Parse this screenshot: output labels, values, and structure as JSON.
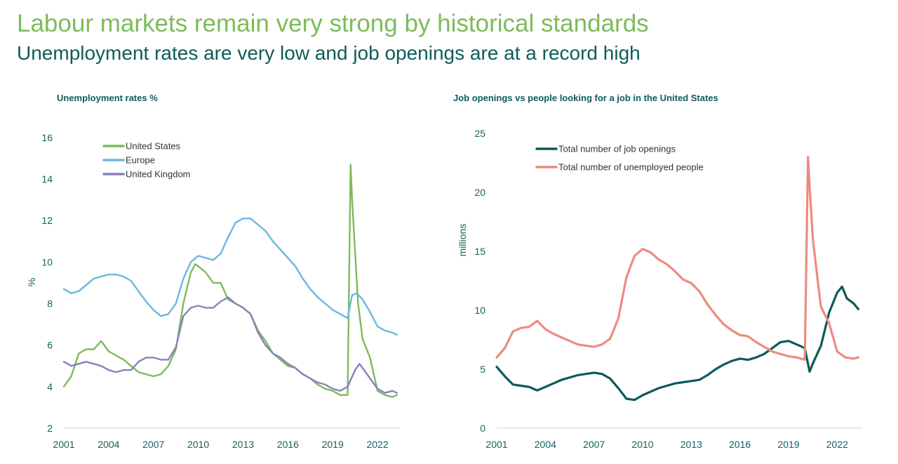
{
  "header": {
    "title": "Labour markets remain very strong by historical standards",
    "subtitle": "Unemployment rates are very low and job openings are at a record high"
  },
  "colors": {
    "title": "#7dbb5a",
    "subtitle": "#0f5b5b",
    "united_states": "#7dbb5a",
    "europe": "#6cb7df",
    "united_kingdom": "#8a80be",
    "job_openings": "#0b5a5a",
    "unemployed_people": "#ec8b80"
  },
  "chart_data": [
    {
      "type": "line",
      "title": "Unemployment rates %",
      "xlabel": "",
      "ylabel": "%",
      "xlim": [
        2001,
        2023.5
      ],
      "ylim": [
        2,
        16.4
      ],
      "xticks": [
        2001,
        2004,
        2007,
        2010,
        2013,
        2016,
        2019,
        2022
      ],
      "yticks": [
        2,
        4,
        6,
        8,
        10,
        12,
        14,
        16
      ],
      "grid": false,
      "legend": "top-left",
      "series": [
        {
          "name": "United States",
          "color": "#7dbb5a",
          "x": [
            2001.0,
            2001.5,
            2002.0,
            2002.5,
            2003.0,
            2003.5,
            2004.0,
            2004.5,
            2005.0,
            2005.5,
            2006.0,
            2006.5,
            2007.0,
            2007.5,
            2008.0,
            2008.5,
            2009.0,
            2009.5,
            2009.8,
            2010.0,
            2010.5,
            2011.0,
            2011.5,
            2012.0,
            2012.5,
            2013.0,
            2013.5,
            2014.0,
            2014.5,
            2015.0,
            2015.5,
            2016.0,
            2016.5,
            2017.0,
            2017.5,
            2018.0,
            2018.5,
            2019.0,
            2019.5,
            2020.0,
            2020.2,
            2020.3,
            2020.5,
            2020.7,
            2021.0,
            2021.5,
            2022.0,
            2022.5,
            2023.0,
            2023.3
          ],
          "values": [
            4.0,
            4.5,
            5.6,
            5.8,
            5.8,
            6.2,
            5.7,
            5.5,
            5.3,
            5.0,
            4.7,
            4.6,
            4.5,
            4.6,
            5.0,
            5.8,
            8.0,
            9.5,
            9.9,
            9.8,
            9.5,
            9.0,
            9.0,
            8.2,
            8.0,
            7.8,
            7.5,
            6.7,
            6.2,
            5.6,
            5.3,
            5.0,
            4.9,
            4.6,
            4.4,
            4.1,
            3.9,
            3.8,
            3.6,
            3.6,
            14.7,
            13.0,
            10.5,
            8.0,
            6.3,
            5.4,
            3.8,
            3.6,
            3.5,
            3.6
          ]
        },
        {
          "name": "Europe",
          "color": "#6cb7df",
          "x": [
            2001.0,
            2001.5,
            2002.0,
            2002.5,
            2003.0,
            2003.5,
            2004.0,
            2004.5,
            2005.0,
            2005.5,
            2006.0,
            2006.5,
            2007.0,
            2007.5,
            2008.0,
            2008.5,
            2009.0,
            2009.5,
            2010.0,
            2010.5,
            2011.0,
            2011.5,
            2012.0,
            2012.5,
            2013.0,
            2013.5,
            2014.0,
            2014.5,
            2015.0,
            2015.5,
            2016.0,
            2016.5,
            2017.0,
            2017.5,
            2018.0,
            2018.5,
            2019.0,
            2019.5,
            2020.0,
            2020.3,
            2020.6,
            2021.0,
            2021.5,
            2022.0,
            2022.5,
            2023.0,
            2023.3
          ],
          "values": [
            8.7,
            8.5,
            8.6,
            8.9,
            9.2,
            9.3,
            9.4,
            9.4,
            9.3,
            9.1,
            8.6,
            8.1,
            7.7,
            7.4,
            7.5,
            8.0,
            9.2,
            10.0,
            10.3,
            10.2,
            10.1,
            10.4,
            11.2,
            11.9,
            12.1,
            12.1,
            11.8,
            11.5,
            11.0,
            10.6,
            10.2,
            9.8,
            9.2,
            8.7,
            8.3,
            8.0,
            7.7,
            7.5,
            7.3,
            8.4,
            8.5,
            8.2,
            7.6,
            6.9,
            6.7,
            6.6,
            6.5
          ]
        },
        {
          "name": "United Kingdom",
          "color": "#8a80be",
          "x": [
            2001.0,
            2001.5,
            2002.0,
            2002.5,
            2003.0,
            2003.5,
            2004.0,
            2004.5,
            2005.0,
            2005.5,
            2006.0,
            2006.5,
            2007.0,
            2007.5,
            2008.0,
            2008.5,
            2009.0,
            2009.5,
            2010.0,
            2010.5,
            2011.0,
            2011.5,
            2012.0,
            2012.5,
            2013.0,
            2013.5,
            2014.0,
            2014.5,
            2015.0,
            2015.5,
            2016.0,
            2016.5,
            2017.0,
            2017.5,
            2018.0,
            2018.5,
            2019.0,
            2019.5,
            2020.0,
            2020.5,
            2020.8,
            2021.0,
            2021.5,
            2022.0,
            2022.5,
            2023.0,
            2023.3
          ],
          "values": [
            5.2,
            5.0,
            5.1,
            5.2,
            5.1,
            5.0,
            4.8,
            4.7,
            4.8,
            4.8,
            5.2,
            5.4,
            5.4,
            5.3,
            5.3,
            5.9,
            7.4,
            7.8,
            7.9,
            7.8,
            7.8,
            8.1,
            8.3,
            8.0,
            7.8,
            7.5,
            6.6,
            6.0,
            5.6,
            5.4,
            5.1,
            4.9,
            4.6,
            4.4,
            4.2,
            4.1,
            3.9,
            3.8,
            4.0,
            4.8,
            5.1,
            4.9,
            4.4,
            3.9,
            3.7,
            3.8,
            3.7
          ]
        }
      ]
    },
    {
      "type": "line",
      "title": "Job openings vs people looking for a job in the United States",
      "xlabel": "",
      "ylabel": "millions",
      "xlim": [
        2001,
        2023.5
      ],
      "ylim": [
        0,
        25
      ],
      "xticks": [
        2001,
        2004,
        2007,
        2010,
        2013,
        2016,
        2019,
        2022
      ],
      "yticks": [
        0,
        5,
        10,
        15,
        20,
        25
      ],
      "grid": false,
      "legend": "top-left",
      "series": [
        {
          "name": "Total number of job openings",
          "color": "#0b5a5a",
          "x": [
            2001.0,
            2001.5,
            2002.0,
            2002.5,
            2003.0,
            2003.5,
            2004.0,
            2004.5,
            2005.0,
            2005.5,
            2006.0,
            2006.5,
            2007.0,
            2007.5,
            2008.0,
            2008.5,
            2009.0,
            2009.5,
            2010.0,
            2010.5,
            2011.0,
            2011.5,
            2012.0,
            2012.5,
            2013.0,
            2013.5,
            2014.0,
            2014.5,
            2015.0,
            2015.5,
            2016.0,
            2016.5,
            2017.0,
            2017.5,
            2018.0,
            2018.5,
            2019.0,
            2019.5,
            2020.0,
            2020.3,
            2020.5,
            2021.0,
            2021.5,
            2022.0,
            2022.3,
            2022.6,
            2023.0,
            2023.3
          ],
          "values": [
            5.2,
            4.4,
            3.7,
            3.6,
            3.5,
            3.2,
            3.5,
            3.8,
            4.1,
            4.3,
            4.5,
            4.6,
            4.7,
            4.6,
            4.2,
            3.4,
            2.5,
            2.4,
            2.8,
            3.1,
            3.4,
            3.6,
            3.8,
            3.9,
            4.0,
            4.1,
            4.5,
            5.0,
            5.4,
            5.7,
            5.9,
            5.8,
            6.0,
            6.3,
            6.8,
            7.3,
            7.4,
            7.1,
            6.8,
            4.8,
            5.5,
            7.0,
            9.8,
            11.5,
            12.0,
            11.0,
            10.6,
            10.1
          ]
        },
        {
          "name": "Total number of unemployed people",
          "color": "#ec8b80",
          "x": [
            2001.0,
            2001.5,
            2002.0,
            2002.5,
            2003.0,
            2003.5,
            2004.0,
            2004.5,
            2005.0,
            2005.5,
            2006.0,
            2006.5,
            2007.0,
            2007.5,
            2008.0,
            2008.5,
            2009.0,
            2009.5,
            2010.0,
            2010.5,
            2011.0,
            2011.5,
            2012.0,
            2012.5,
            2013.0,
            2013.5,
            2014.0,
            2014.5,
            2015.0,
            2015.5,
            2016.0,
            2016.5,
            2017.0,
            2017.5,
            2018.0,
            2018.5,
            2019.0,
            2019.5,
            2020.0,
            2020.2,
            2020.3,
            2020.5,
            2020.8,
            2021.0,
            2021.5,
            2022.0,
            2022.5,
            2023.0,
            2023.3
          ],
          "values": [
            6.0,
            6.8,
            8.2,
            8.5,
            8.6,
            9.1,
            8.4,
            8.0,
            7.7,
            7.4,
            7.1,
            7.0,
            6.9,
            7.1,
            7.6,
            9.3,
            12.8,
            14.6,
            15.2,
            14.9,
            14.3,
            13.9,
            13.3,
            12.6,
            12.3,
            11.6,
            10.5,
            9.6,
            8.8,
            8.3,
            7.9,
            7.8,
            7.3,
            6.9,
            6.5,
            6.3,
            6.1,
            6.0,
            5.8,
            23.0,
            20.5,
            16.0,
            12.5,
            10.3,
            8.9,
            6.5,
            6.0,
            5.9,
            6.0
          ]
        }
      ]
    }
  ]
}
